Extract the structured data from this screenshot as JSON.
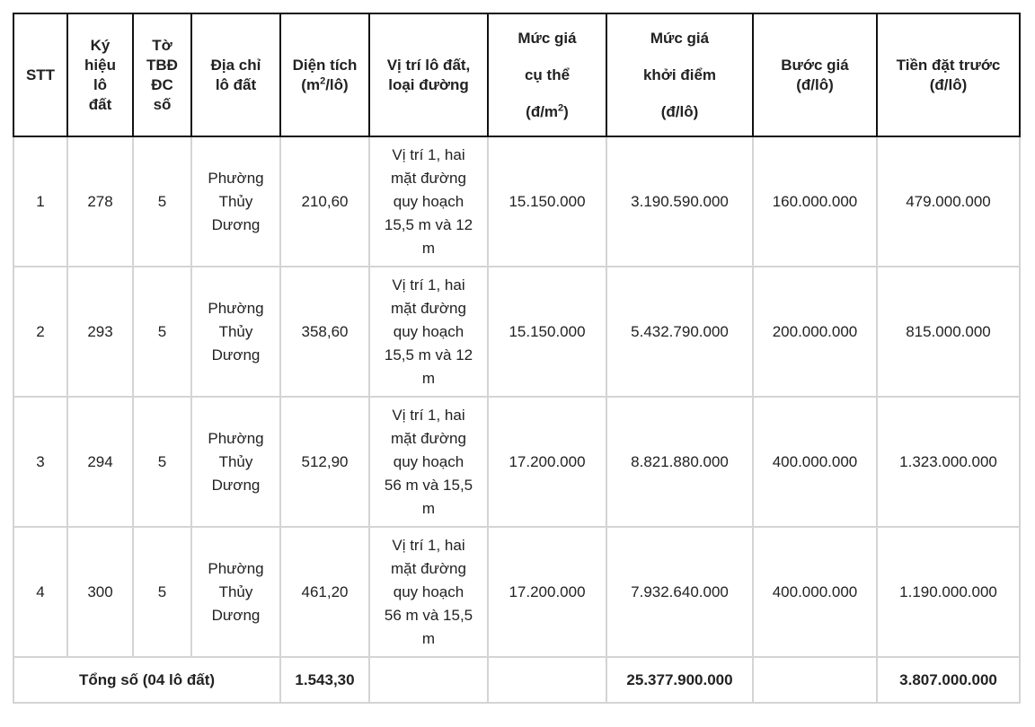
{
  "table": {
    "header": [
      {
        "lines": [
          "STT"
        ]
      },
      {
        "lines": [
          "Ký",
          "hiệu",
          "lô",
          "đất"
        ]
      },
      {
        "lines": [
          "Tờ",
          "TBĐ",
          "ĐC",
          "số"
        ]
      },
      {
        "lines": [
          "Địa chỉ",
          "lô đất"
        ]
      },
      {
        "lines": [
          "Diện tích",
          {
            "text": "(m",
            "sup": "2",
            "tail": "/lô)"
          }
        ]
      },
      {
        "lines": [
          "Vị trí lô đất,",
          "loại đường"
        ]
      },
      {
        "lines": [
          "Mức giá",
          "cụ thể",
          {
            "text": "(đ/m",
            "sup": "2",
            "tail": ")"
          }
        ]
      },
      {
        "lines": [
          "Mức giá",
          "khởi điểm",
          "(đ/lô)"
        ]
      },
      {
        "lines": [
          "Bước giá",
          "(đ/lô)"
        ]
      },
      {
        "lines": [
          "Tiền đặt trước",
          "(đ/lô)"
        ]
      }
    ],
    "rows": [
      [
        "1",
        "278",
        "5",
        "Phường Thủy Dương",
        "210,60",
        "Vị trí 1, hai mặt đường quy hoạch 15,5 m và 12 m",
        "15.150.000",
        "3.190.590.000",
        "160.000.000",
        "479.000.000"
      ],
      [
        "2",
        "293",
        "5",
        "Phường Thủy Dương",
        "358,60",
        "Vị trí 1, hai mặt đường quy hoạch 15,5 m và 12 m",
        "15.150.000",
        "5.432.790.000",
        "200.000.000",
        "815.000.000"
      ],
      [
        "3",
        "294",
        "5",
        "Phường Thủy Dương",
        "512,90",
        "Vị trí 1, hai mặt đường quy hoạch 56 m và 15,5 m",
        "17.200.000",
        "8.821.880.000",
        "400.000.000",
        "1.323.000.000"
      ],
      [
        "4",
        "300",
        "5",
        "Phường Thủy Dương",
        "461,20",
        "Vị trí 1, hai mặt đường quy hoạch 56 m và 15,5 m",
        "17.200.000",
        "7.932.640.000",
        "400.000.000",
        "1.190.000.000"
      ]
    ],
    "total": {
      "label": "Tổng số (04 lô đất)",
      "area": "1.543,30",
      "starting_price": "25.377.900.000",
      "deposit": "3.807.000.000"
    }
  }
}
